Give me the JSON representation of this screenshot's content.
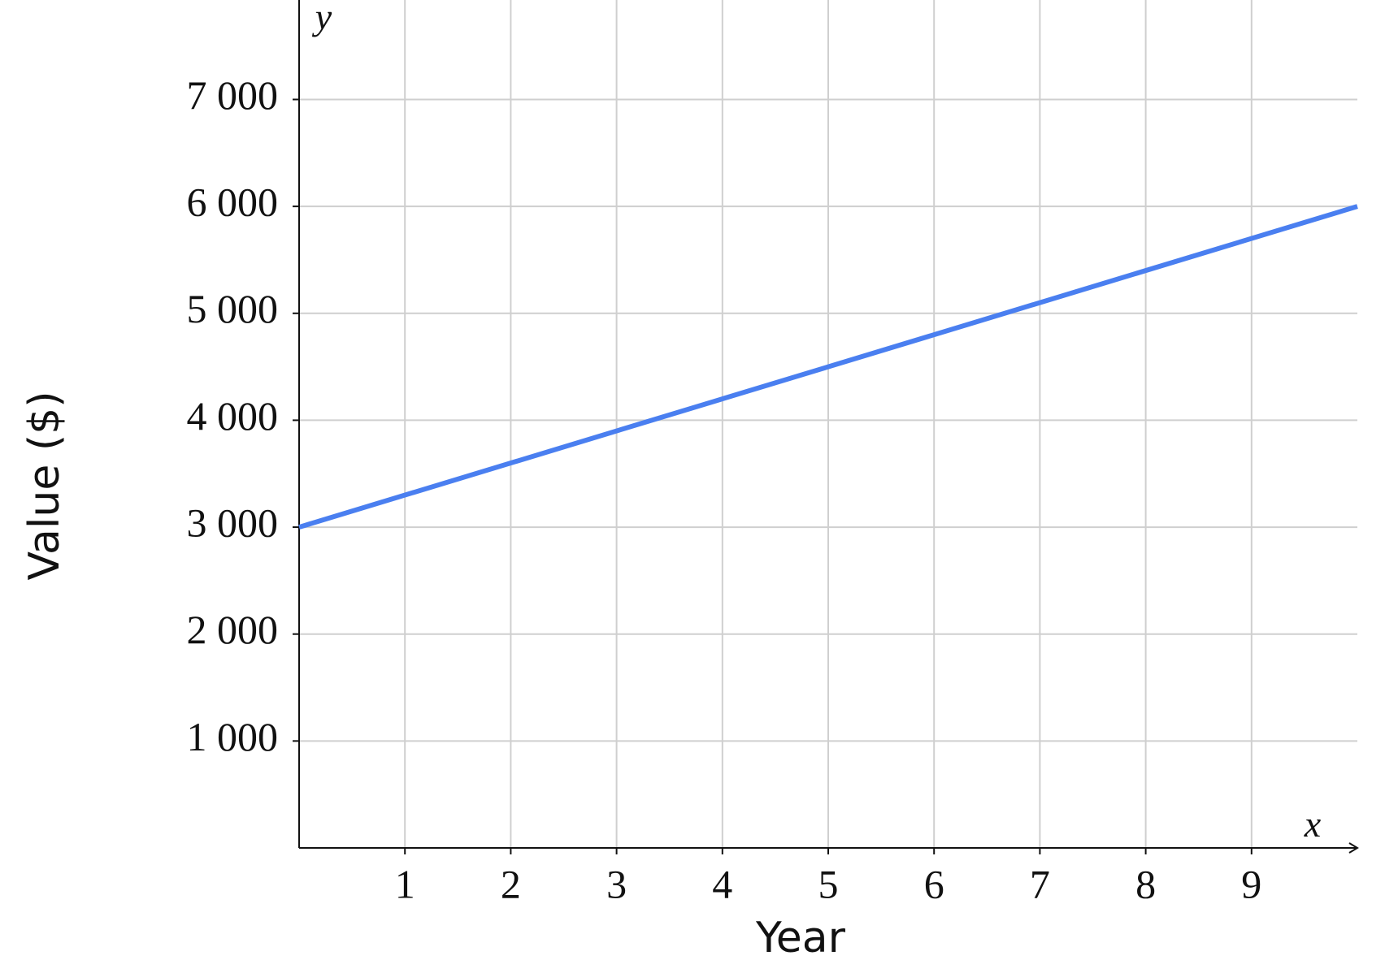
{
  "chart_data": {
    "type": "line",
    "x_label": "Year",
    "y_label": "Value ($)",
    "x_axis_symbol": "x",
    "y_axis_symbol": "y",
    "x": [
      0,
      10
    ],
    "series": [
      {
        "name": null,
        "color": "#4a7ff0",
        "values": [
          3000,
          6000
        ]
      }
    ],
    "xlim": [
      0,
      10
    ],
    "ylim": [
      0,
      7900
    ],
    "xticks": [
      1,
      2,
      3,
      4,
      5,
      6,
      7,
      8,
      9
    ],
    "yticks": [
      {
        "value": 1000,
        "label": "1 000"
      },
      {
        "value": 2000,
        "label": "2 000"
      },
      {
        "value": 3000,
        "label": "3 000"
      },
      {
        "value": 4000,
        "label": "4 000"
      },
      {
        "value": 5000,
        "label": "5 000"
      },
      {
        "value": 6000,
        "label": "6 000"
      },
      {
        "value": 7000,
        "label": "7 000"
      }
    ],
    "grid": true
  }
}
